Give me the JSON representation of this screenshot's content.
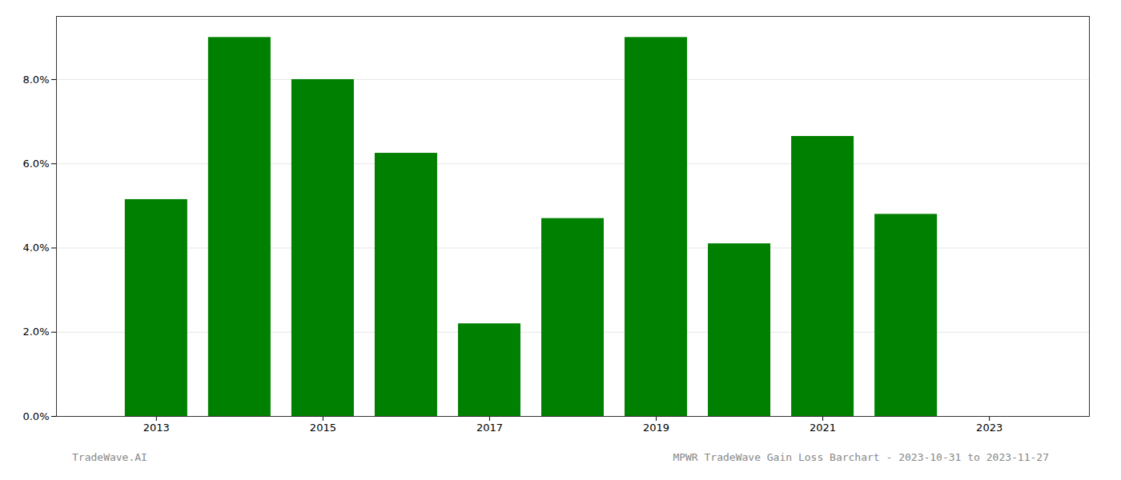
{
  "chart_data": {
    "type": "bar",
    "x": [
      2013,
      2014,
      2015,
      2016,
      2017,
      2018,
      2019,
      2020,
      2021,
      2022
    ],
    "values": [
      0.0515,
      0.09,
      0.08,
      0.0625,
      0.022,
      0.047,
      0.09,
      0.041,
      0.0665,
      0.048
    ],
    "color": "#008000",
    "xlim": [
      2011.8,
      2024.2
    ],
    "xticks": [
      2013,
      2015,
      2017,
      2019,
      2021,
      2023
    ],
    "ylim": [
      0,
      0.095
    ],
    "yticks": [
      {
        "value": 0.0,
        "label": "0.0%"
      },
      {
        "value": 0.02,
        "label": "2.0%"
      },
      {
        "value": 0.04,
        "label": "4.0%"
      },
      {
        "value": 0.06,
        "label": "6.0%"
      },
      {
        "value": 0.08,
        "label": "8.0%"
      }
    ],
    "grid": true,
    "annotations": [
      "TradeWave.AI",
      "MPWR TradeWave Gain Loss Barchart - 2023-10-31 to 2023-11-27"
    ]
  }
}
